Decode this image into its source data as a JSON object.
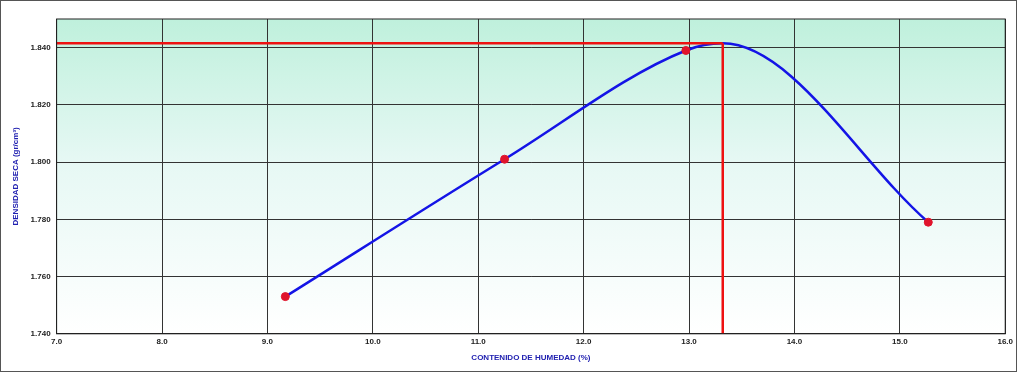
{
  "chart_data": {
    "type": "scatter",
    "x_label": "CONTENIDO DE HUMEDAD (%)",
    "y_label": "DENSIDAD SECA (gr/cm³)",
    "points": {
      "x": [
        9.17,
        11.25,
        12.97,
        15.27
      ],
      "values": [
        1.753,
        1.801,
        1.839,
        1.779
      ],
      "color": "#e0142c",
      "marker": "circle"
    },
    "curve": {
      "x": [
        9.17,
        11.25,
        12.97,
        13.32,
        15.27
      ],
      "values": [
        1.753,
        1.801,
        1.839,
        1.8415,
        1.779
      ],
      "color": "#1414e6",
      "line_style": "solid"
    },
    "optimum": {
      "x": 13.32,
      "y": 1.8415,
      "color": "#ee1111"
    },
    "xlim": [
      7,
      16
    ],
    "xticks": [
      {
        "value": 7,
        "label": "7.0"
      },
      {
        "value": 8,
        "label": "8.0"
      },
      {
        "value": 9,
        "label": "9.0"
      },
      {
        "value": 10,
        "label": "10.0"
      },
      {
        "value": 11,
        "label": "11.0"
      },
      {
        "value": 12,
        "label": "12.0"
      },
      {
        "value": 13,
        "label": "13.0"
      },
      {
        "value": 14,
        "label": "14.0"
      },
      {
        "value": 15,
        "label": "15.0"
      },
      {
        "value": 16,
        "label": "16.0"
      }
    ],
    "ylim": [
      1.74,
      1.85
    ],
    "yticks": [
      {
        "value": 1.74,
        "label": "1.740"
      },
      {
        "value": 1.76,
        "label": "1.760"
      },
      {
        "value": 1.78,
        "label": "1.780"
      },
      {
        "value": 1.8,
        "label": "1.800"
      },
      {
        "value": 1.82,
        "label": "1.820"
      },
      {
        "value": 1.84,
        "label": "1.840"
      }
    ],
    "grid": true
  }
}
